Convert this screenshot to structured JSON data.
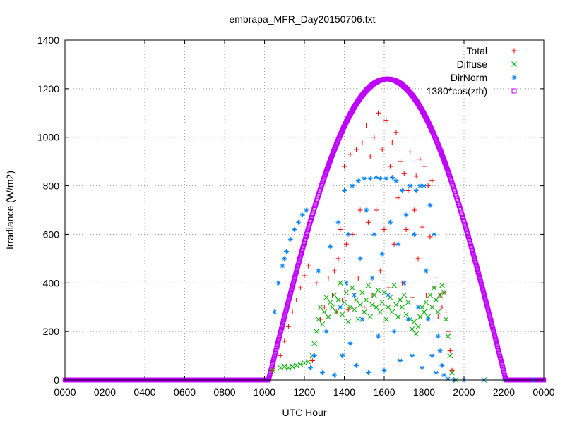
{
  "chart_data": {
    "type": "scatter",
    "title": "embrapa_MFR_Day20150706.txt",
    "xlabel": "UTC Hour",
    "ylabel": "Irradiance (W/m2)",
    "xlim": [
      0,
      24
    ],
    "ylim": [
      0,
      1400
    ],
    "xticks": [
      0,
      2,
      4,
      6,
      8,
      10,
      12,
      14,
      16,
      18,
      20,
      22,
      24
    ],
    "xtick_labels": [
      "0000",
      "0200",
      "0400",
      "0600",
      "0800",
      "1000",
      "1200",
      "1400",
      "1600",
      "1800",
      "2000",
      "2200",
      "0000"
    ],
    "yticks": [
      0,
      200,
      400,
      600,
      800,
      1000,
      1200,
      1400
    ],
    "ytick_labels": [
      "0",
      "200",
      "400",
      "600",
      "800",
      "1000",
      "1200",
      "1400"
    ],
    "grid": true,
    "legend_position": "top-right",
    "series": [
      {
        "name": "Total",
        "marker": "+",
        "color": "#ff0000",
        "points": [
          [
            10.4,
            40
          ],
          [
            10.8,
            100
          ],
          [
            11.0,
            160
          ],
          [
            11.2,
            220
          ],
          [
            11.4,
            280
          ],
          [
            11.6,
            330
          ],
          [
            11.8,
            380
          ],
          [
            12.0,
            430
          ],
          [
            12.2,
            470
          ],
          [
            12.4,
            80
          ],
          [
            12.6,
            400
          ],
          [
            12.8,
            250
          ],
          [
            13.0,
            300
          ],
          [
            13.2,
            420
          ],
          [
            13.4,
            350
          ],
          [
            13.5,
            450
          ],
          [
            13.6,
            280
          ],
          [
            13.7,
            500
          ],
          [
            13.8,
            620
          ],
          [
            13.9,
            330
          ],
          [
            14.0,
            880
          ],
          [
            14.1,
            560
          ],
          [
            14.2,
            290
          ],
          [
            14.3,
            930
          ],
          [
            14.4,
            600
          ],
          [
            14.5,
            350
          ],
          [
            14.6,
            950
          ],
          [
            14.7,
            420
          ],
          [
            14.8,
            700
          ],
          [
            14.9,
            980
          ],
          [
            15.0,
            300
          ],
          [
            15.1,
            1050
          ],
          [
            15.2,
            650
          ],
          [
            15.3,
            920
          ],
          [
            15.4,
            350
          ],
          [
            15.5,
            1000
          ],
          [
            15.6,
            700
          ],
          [
            15.7,
            1100
          ],
          [
            15.8,
            450
          ],
          [
            15.9,
            950
          ],
          [
            16.0,
            620
          ],
          [
            16.1,
            1070
          ],
          [
            16.2,
            380
          ],
          [
            16.3,
            880
          ],
          [
            16.4,
            980
          ],
          [
            16.5,
            560
          ],
          [
            16.6,
            1020
          ],
          [
            16.7,
            750
          ],
          [
            16.8,
            900
          ],
          [
            16.9,
            400
          ],
          [
            17.0,
            850
          ],
          [
            17.1,
            620
          ],
          [
            17.2,
            780
          ],
          [
            17.3,
            940
          ],
          [
            17.4,
            340
          ],
          [
            17.5,
            700
          ],
          [
            17.6,
            840
          ],
          [
            17.7,
            500
          ],
          [
            17.8,
            910
          ],
          [
            17.9,
            630
          ],
          [
            18.0,
            880
          ],
          [
            18.1,
            350
          ],
          [
            18.2,
            800
          ],
          [
            18.3,
            590
          ],
          [
            18.4,
            820
          ],
          [
            18.5,
            380
          ],
          [
            18.6,
            420
          ],
          [
            18.7,
            260
          ],
          [
            18.8,
            350
          ],
          [
            18.9,
            300
          ],
          [
            19.0,
            360
          ],
          [
            19.1,
            280
          ],
          [
            19.2,
            200
          ],
          [
            19.3,
            120
          ],
          [
            19.4,
            40
          ],
          [
            19.5,
            0
          ],
          [
            20.0,
            0
          ],
          [
            22.0,
            0
          ],
          [
            23.5,
            0
          ]
        ]
      },
      {
        "name": "Diffuse",
        "marker": "x",
        "color": "#00b000",
        "points": [
          [
            10.4,
            40
          ],
          [
            10.8,
            50
          ],
          [
            11.0,
            55
          ],
          [
            11.2,
            50
          ],
          [
            11.4,
            55
          ],
          [
            11.6,
            60
          ],
          [
            11.8,
            65
          ],
          [
            12.0,
            70
          ],
          [
            12.2,
            75
          ],
          [
            12.4,
            100
          ],
          [
            12.5,
            150
          ],
          [
            12.6,
            200
          ],
          [
            12.7,
            250
          ],
          [
            12.8,
            300
          ],
          [
            12.9,
            230
          ],
          [
            13.0,
            280
          ],
          [
            13.1,
            340
          ],
          [
            13.2,
            260
          ],
          [
            13.3,
            320
          ],
          [
            13.4,
            300
          ],
          [
            13.5,
            350
          ],
          [
            13.6,
            280
          ],
          [
            13.7,
            330
          ],
          [
            13.8,
            400
          ],
          [
            13.9,
            270
          ],
          [
            14.0,
            320
          ],
          [
            14.1,
            360
          ],
          [
            14.2,
            240
          ],
          [
            14.3,
            300
          ],
          [
            14.4,
            380
          ],
          [
            14.5,
            290
          ],
          [
            14.6,
            330
          ],
          [
            14.7,
            250
          ],
          [
            14.8,
            310
          ],
          [
            14.9,
            360
          ],
          [
            15.0,
            280
          ],
          [
            15.1,
            330
          ],
          [
            15.2,
            390
          ],
          [
            15.3,
            260
          ],
          [
            15.4,
            310
          ],
          [
            15.5,
            350
          ],
          [
            15.6,
            300
          ],
          [
            15.7,
            370
          ],
          [
            15.8,
            280
          ],
          [
            15.9,
            320
          ],
          [
            16.0,
            360
          ],
          [
            16.1,
            250
          ],
          [
            16.2,
            300
          ],
          [
            16.3,
            340
          ],
          [
            16.4,
            280
          ],
          [
            16.5,
            390
          ],
          [
            16.6,
            310
          ],
          [
            16.7,
            260
          ],
          [
            16.8,
            330
          ],
          [
            16.9,
            300
          ],
          [
            17.0,
            350
          ],
          [
            17.1,
            270
          ],
          [
            17.2,
            320
          ],
          [
            17.3,
            250
          ],
          [
            17.4,
            210
          ],
          [
            17.5,
            240
          ],
          [
            17.6,
            190
          ],
          [
            17.7,
            220
          ],
          [
            17.8,
            260
          ],
          [
            17.9,
            300
          ],
          [
            18.0,
            280
          ],
          [
            18.1,
            320
          ],
          [
            18.2,
            260
          ],
          [
            18.3,
            350
          ],
          [
            18.4,
            300
          ],
          [
            18.5,
            380
          ],
          [
            18.6,
            330
          ],
          [
            18.7,
            280
          ],
          [
            18.8,
            350
          ],
          [
            18.9,
            390
          ],
          [
            19.0,
            360
          ],
          [
            19.1,
            250
          ],
          [
            19.2,
            180
          ],
          [
            19.3,
            100
          ],
          [
            19.4,
            30
          ],
          [
            19.6,
            0
          ],
          [
            21.0,
            0
          ]
        ]
      },
      {
        "name": "DirNorm",
        "marker": "*",
        "color": "#0080ff",
        "points": [
          [
            10.5,
            280
          ],
          [
            10.7,
            400
          ],
          [
            10.9,
            470
          ],
          [
            11.0,
            500
          ],
          [
            11.1,
            530
          ],
          [
            11.3,
            580
          ],
          [
            11.5,
            620
          ],
          [
            11.7,
            650
          ],
          [
            11.9,
            680
          ],
          [
            12.1,
            700
          ],
          [
            12.3,
            50
          ],
          [
            12.5,
            100
          ],
          [
            12.7,
            450
          ],
          [
            12.9,
            30
          ],
          [
            13.1,
            200
          ],
          [
            13.3,
            550
          ],
          [
            13.5,
            20
          ],
          [
            13.7,
            650
          ],
          [
            13.8,
            300
          ],
          [
            13.9,
            100
          ],
          [
            14.0,
            780
          ],
          [
            14.1,
            400
          ],
          [
            14.2,
            600
          ],
          [
            14.3,
            150
          ],
          [
            14.4,
            800
          ],
          [
            14.5,
            350
          ],
          [
            14.6,
            60
          ],
          [
            14.7,
            820
          ],
          [
            14.8,
            500
          ],
          [
            14.9,
            250
          ],
          [
            15.0,
            830
          ],
          [
            15.1,
            700
          ],
          [
            15.2,
            30
          ],
          [
            15.3,
            830
          ],
          [
            15.4,
            420
          ],
          [
            15.5,
            600
          ],
          [
            15.6,
            835
          ],
          [
            15.7,
            180
          ],
          [
            15.8,
            830
          ],
          [
            15.9,
            520
          ],
          [
            16.0,
            40
          ],
          [
            16.1,
            830
          ],
          [
            16.2,
            350
          ],
          [
            16.3,
            650
          ],
          [
            16.4,
            835
          ],
          [
            16.5,
            200
          ],
          [
            16.6,
            820
          ],
          [
            16.7,
            560
          ],
          [
            16.8,
            80
          ],
          [
            16.9,
            780
          ],
          [
            17.0,
            400
          ],
          [
            17.1,
            680
          ],
          [
            17.2,
            250
          ],
          [
            17.3,
            800
          ],
          [
            17.4,
            100
          ],
          [
            17.5,
            600
          ],
          [
            17.6,
            780
          ],
          [
            17.7,
            300
          ],
          [
            17.8,
            800
          ],
          [
            17.9,
            50
          ],
          [
            18.0,
            800
          ],
          [
            18.1,
            450
          ],
          [
            18.2,
            250
          ],
          [
            18.3,
            720
          ],
          [
            18.4,
            100
          ],
          [
            18.5,
            600
          ],
          [
            18.6,
            30
          ],
          [
            18.7,
            180
          ],
          [
            18.8,
            120
          ],
          [
            18.9,
            60
          ],
          [
            19.0,
            20
          ],
          [
            19.2,
            5
          ],
          [
            19.5,
            0
          ],
          [
            20.0,
            0
          ],
          [
            21.0,
            0
          ],
          [
            22.0,
            0
          ],
          [
            23.5,
            0
          ]
        ]
      },
      {
        "name": "1380*cos(zth)",
        "marker": "square",
        "color": "#c000ff",
        "curve": {
          "sunrise": 10.2,
          "sunset": 22.1,
          "peak_time": 16.15,
          "peak": 1240
        }
      }
    ]
  }
}
